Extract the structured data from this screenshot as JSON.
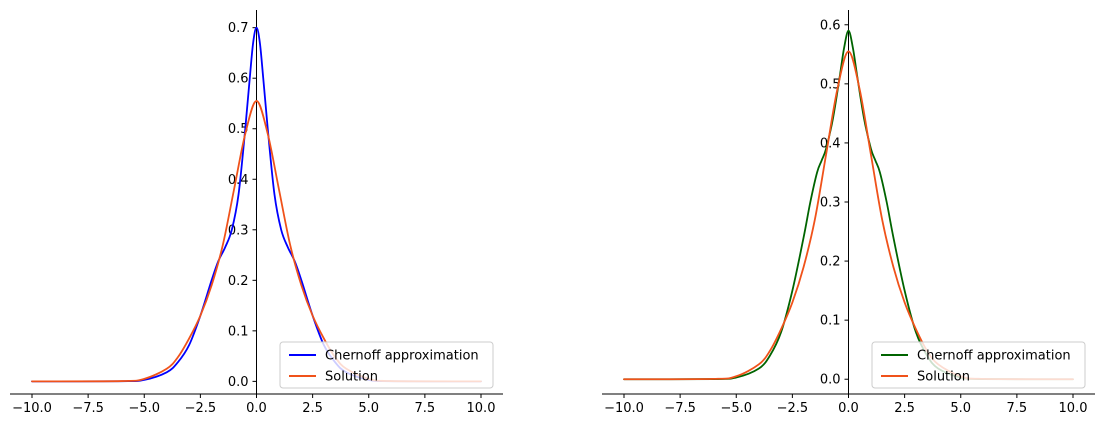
{
  "chart_data": [
    {
      "type": "line",
      "xlim": [
        -10,
        10
      ],
      "ylim": [
        -0.025,
        0.735
      ],
      "xticks": [
        -10,
        -7.5,
        -5,
        -2.5,
        0,
        2.5,
        5,
        7.5,
        10
      ],
      "xtick_labels": [
        "−10.0",
        "−7.5",
        "−5.0",
        "−2.5",
        "0.0",
        "2.5",
        "5.0",
        "7.5",
        "10.0"
      ],
      "yticks": [
        0,
        0.1,
        0.2,
        0.3,
        0.4,
        0.5,
        0.6,
        0.7
      ],
      "ytick_labels": [
        "0.0",
        "0.1",
        "0.2",
        "0.3",
        "0.4",
        "0.5",
        "0.6",
        "0.7"
      ],
      "spines": "y axis through x=0, x axis at bottom, top/right hidden",
      "grid": false,
      "legend_position": "lower-right",
      "series": [
        {
          "name": "Chernoff approximation",
          "color": "#0000ff",
          "x": [
            -10,
            -6,
            -5,
            -4,
            -3.5,
            -3,
            -2.5,
            -2,
            -1.7,
            -1.4,
            -1.1,
            -0.8,
            -0.5,
            -0.3,
            -0.15,
            0,
            0.15,
            0.3,
            0.5,
            0.8,
            1.1,
            1.4,
            1.7,
            2,
            2.5,
            3,
            3.5,
            4,
            5,
            6,
            10
          ],
          "y": [
            0,
            0.0003,
            0.003,
            0.018,
            0.038,
            0.072,
            0.13,
            0.2,
            0.238,
            0.265,
            0.3,
            0.37,
            0.5,
            0.6,
            0.67,
            0.7,
            0.67,
            0.6,
            0.5,
            0.37,
            0.3,
            0.265,
            0.238,
            0.2,
            0.13,
            0.072,
            0.038,
            0.018,
            0.003,
            0.0003,
            0
          ]
        },
        {
          "name": "Solution",
          "color": "#f0521a",
          "x": [
            -10,
            -6,
            -5,
            -4,
            -3.5,
            -3,
            -2.5,
            -2,
            -1.5,
            -1,
            -0.5,
            0,
            0.5,
            1,
            1.5,
            2,
            2.5,
            3,
            3.5,
            4,
            5,
            6,
            10
          ],
          "y": [
            0,
            0.0006,
            0.005,
            0.025,
            0.048,
            0.085,
            0.13,
            0.19,
            0.27,
            0.38,
            0.49,
            0.555,
            0.49,
            0.38,
            0.27,
            0.19,
            0.13,
            0.085,
            0.048,
            0.025,
            0.005,
            0.0006,
            0
          ]
        }
      ]
    },
    {
      "type": "line",
      "xlim": [
        -10,
        10
      ],
      "ylim": [
        -0.025,
        0.625
      ],
      "xticks": [
        -10,
        -7.5,
        -5,
        -2.5,
        0,
        2.5,
        5,
        7.5,
        10
      ],
      "xtick_labels": [
        "−10.0",
        "−7.5",
        "−5.0",
        "−2.5",
        "0.0",
        "2.5",
        "5.0",
        "7.5",
        "10.0"
      ],
      "yticks": [
        0,
        0.1,
        0.2,
        0.3,
        0.4,
        0.5,
        0.6
      ],
      "ytick_labels": [
        "0.0",
        "0.1",
        "0.2",
        "0.3",
        "0.4",
        "0.5",
        "0.6"
      ],
      "spines": "y axis through x=0, x axis at bottom, top/right hidden",
      "grid": false,
      "legend_position": "lower-right",
      "series": [
        {
          "name": "Chernoff approximation",
          "color": "#006400",
          "x": [
            -10,
            -6,
            -5,
            -4,
            -3.5,
            -3,
            -2.5,
            -2,
            -1.7,
            -1.4,
            -1.2,
            -1,
            -0.7,
            -0.4,
            -0.2,
            0,
            0.2,
            0.4,
            0.7,
            1,
            1.2,
            1.4,
            1.7,
            2,
            2.5,
            3,
            3.5,
            4,
            5,
            6,
            10
          ],
          "y": [
            0,
            0.0003,
            0.003,
            0.018,
            0.04,
            0.08,
            0.15,
            0.24,
            0.3,
            0.35,
            0.37,
            0.39,
            0.44,
            0.51,
            0.56,
            0.59,
            0.56,
            0.51,
            0.44,
            0.39,
            0.37,
            0.35,
            0.3,
            0.24,
            0.15,
            0.08,
            0.04,
            0.018,
            0.003,
            0.0003,
            0
          ]
        },
        {
          "name": "Solution",
          "color": "#f0521a",
          "x": [
            -10,
            -6,
            -5,
            -4,
            -3.5,
            -3,
            -2.5,
            -2,
            -1.5,
            -1,
            -0.5,
            0,
            0.5,
            1,
            1.5,
            2,
            2.5,
            3,
            3.5,
            4,
            5,
            6,
            10
          ],
          "y": [
            0,
            0.0006,
            0.005,
            0.025,
            0.048,
            0.085,
            0.13,
            0.19,
            0.27,
            0.38,
            0.49,
            0.555,
            0.49,
            0.38,
            0.27,
            0.19,
            0.13,
            0.085,
            0.048,
            0.025,
            0.005,
            0.0006,
            0
          ]
        }
      ]
    }
  ]
}
